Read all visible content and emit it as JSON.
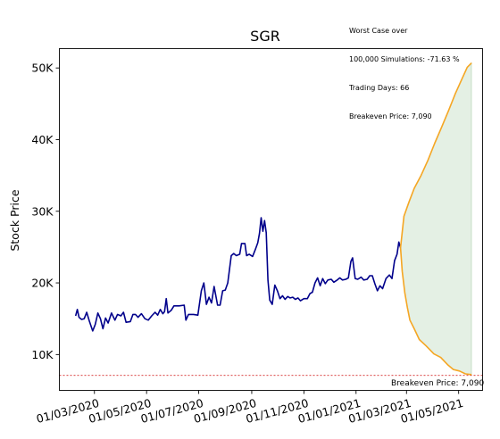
{
  "chart_data": {
    "type": "line",
    "title": "SGR",
    "xlabel": "",
    "ylabel": "Stock Price",
    "x_ticks": [
      "01/03/2020",
      "01/05/2020",
      "01/07/2020",
      "01/09/2020",
      "01/11/2020",
      "01/01/2021",
      "01/03/2021",
      "01/05/2021"
    ],
    "y_ticks": [
      {
        "value": 10000,
        "label": "10K"
      },
      {
        "value": 20000,
        "label": "20K"
      },
      {
        "value": 30000,
        "label": "30K"
      },
      {
        "value": 40000,
        "label": "40K"
      },
      {
        "value": 50000,
        "label": "50K"
      }
    ],
    "ylim": [
      5000,
      52700
    ],
    "xlim": [
      "2020-01-20",
      "2021-05-29"
    ],
    "grid": false,
    "series": [
      {
        "role": "historical",
        "color": "#00008b",
        "points": [
          [
            "2020-02-08",
            15400
          ],
          [
            "2020-02-10",
            16300
          ],
          [
            "2020-02-12",
            15200
          ],
          [
            "2020-02-15",
            14900
          ],
          [
            "2020-02-18",
            15000
          ],
          [
            "2020-02-21",
            15900
          ],
          [
            "2020-02-24",
            14700
          ],
          [
            "2020-02-28",
            13300
          ],
          [
            "2020-03-02",
            14200
          ],
          [
            "2020-03-05",
            15800
          ],
          [
            "2020-03-08",
            15000
          ],
          [
            "2020-03-11",
            13600
          ],
          [
            "2020-03-14",
            15100
          ],
          [
            "2020-03-17",
            14400
          ],
          [
            "2020-03-21",
            15800
          ],
          [
            "2020-03-25",
            14800
          ],
          [
            "2020-03-28",
            15600
          ],
          [
            "2020-04-01",
            15400
          ],
          [
            "2020-04-04",
            15900
          ],
          [
            "2020-04-07",
            14500
          ],
          [
            "2020-04-12",
            14600
          ],
          [
            "2020-04-15",
            15600
          ],
          [
            "2020-04-18",
            15600
          ],
          [
            "2020-04-21",
            15200
          ],
          [
            "2020-04-25",
            15700
          ],
          [
            "2020-04-29",
            15000
          ],
          [
            "2020-05-03",
            14800
          ],
          [
            "2020-05-07",
            15400
          ],
          [
            "2020-05-11",
            15900
          ],
          [
            "2020-05-14",
            15500
          ],
          [
            "2020-05-17",
            16300
          ],
          [
            "2020-05-20",
            15700
          ],
          [
            "2020-05-22",
            16000
          ],
          [
            "2020-05-24",
            17800
          ],
          [
            "2020-05-26",
            15800
          ],
          [
            "2020-05-30",
            16200
          ],
          [
            "2020-06-02",
            16800
          ],
          [
            "2020-06-08",
            16800
          ],
          [
            "2020-06-14",
            16900
          ],
          [
            "2020-06-16",
            14800
          ],
          [
            "2020-06-19",
            15600
          ],
          [
            "2020-06-25",
            15600
          ],
          [
            "2020-06-30",
            15500
          ],
          [
            "2020-07-04",
            18900
          ],
          [
            "2020-07-07",
            20000
          ],
          [
            "2020-07-10",
            17000
          ],
          [
            "2020-07-13",
            18000
          ],
          [
            "2020-07-16",
            17200
          ],
          [
            "2020-07-19",
            19500
          ],
          [
            "2020-07-23",
            16900
          ],
          [
            "2020-07-26",
            16900
          ],
          [
            "2020-07-29",
            18900
          ],
          [
            "2020-08-01",
            19000
          ],
          [
            "2020-08-04",
            20000
          ],
          [
            "2020-08-08",
            23800
          ],
          [
            "2020-08-11",
            24100
          ],
          [
            "2020-08-14",
            23800
          ],
          [
            "2020-08-18",
            24000
          ],
          [
            "2020-08-20",
            25500
          ],
          [
            "2020-08-24",
            25500
          ],
          [
            "2020-08-26",
            23800
          ],
          [
            "2020-08-29",
            24000
          ],
          [
            "2020-09-02",
            23700
          ],
          [
            "2020-09-05",
            24600
          ],
          [
            "2020-09-08",
            25600
          ],
          [
            "2020-09-10",
            26900
          ],
          [
            "2020-09-12",
            29100
          ],
          [
            "2020-09-14",
            27200
          ],
          [
            "2020-09-16",
            28700
          ],
          [
            "2020-09-18",
            27000
          ],
          [
            "2020-09-20",
            20400
          ],
          [
            "2020-09-22",
            17600
          ],
          [
            "2020-09-25",
            17000
          ],
          [
            "2020-09-28",
            19700
          ],
          [
            "2020-10-01",
            18900
          ],
          [
            "2020-10-04",
            17800
          ],
          [
            "2020-10-07",
            18200
          ],
          [
            "2020-10-10",
            17700
          ],
          [
            "2020-10-13",
            18100
          ],
          [
            "2020-10-16",
            17900
          ],
          [
            "2020-10-19",
            18000
          ],
          [
            "2020-10-22",
            17700
          ],
          [
            "2020-10-25",
            17900
          ],
          [
            "2020-10-28",
            17500
          ],
          [
            "2020-11-01",
            17800
          ],
          [
            "2020-11-05",
            17800
          ],
          [
            "2020-11-08",
            18500
          ],
          [
            "2020-11-11",
            18700
          ],
          [
            "2020-11-14",
            20000
          ],
          [
            "2020-11-17",
            20700
          ],
          [
            "2020-11-20",
            19600
          ],
          [
            "2020-11-23",
            20600
          ],
          [
            "2020-11-26",
            19900
          ],
          [
            "2020-11-29",
            20400
          ],
          [
            "2020-12-03",
            20500
          ],
          [
            "2020-12-06",
            20100
          ],
          [
            "2020-12-10",
            20400
          ],
          [
            "2020-12-13",
            20700
          ],
          [
            "2020-12-16",
            20400
          ],
          [
            "2020-12-20",
            20500
          ],
          [
            "2020-12-23",
            20700
          ],
          [
            "2020-12-26",
            23000
          ],
          [
            "2020-12-28",
            23500
          ],
          [
            "2020-12-31",
            20600
          ],
          [
            "2021-01-03",
            20500
          ],
          [
            "2021-01-07",
            20800
          ],
          [
            "2021-01-10",
            20400
          ],
          [
            "2021-01-14",
            20500
          ],
          [
            "2021-01-17",
            21000
          ],
          [
            "2021-01-20",
            21000
          ],
          [
            "2021-01-23",
            19900
          ],
          [
            "2021-01-26",
            18900
          ],
          [
            "2021-01-29",
            19600
          ],
          [
            "2021-02-01",
            19200
          ],
          [
            "2021-02-05",
            20600
          ],
          [
            "2021-02-09",
            21100
          ],
          [
            "2021-02-12",
            20600
          ],
          [
            "2021-02-15",
            23100
          ],
          [
            "2021-02-18",
            24000
          ],
          [
            "2021-02-20",
            25700
          ],
          [
            "2021-02-22",
            24900
          ]
        ]
      },
      {
        "role": "best-case simulation",
        "color": "#f5a623",
        "points": [
          [
            "2021-02-22",
            24900
          ],
          [
            "2021-02-26",
            29300
          ],
          [
            "2021-03-04",
            31300
          ],
          [
            "2021-03-10",
            33200
          ],
          [
            "2021-03-18",
            35000
          ],
          [
            "2021-03-26",
            37100
          ],
          [
            "2021-04-03",
            39500
          ],
          [
            "2021-04-11",
            41700
          ],
          [
            "2021-04-19",
            44000
          ],
          [
            "2021-04-27",
            46400
          ],
          [
            "2021-05-05",
            48500
          ],
          [
            "2021-05-11",
            50100
          ],
          [
            "2021-05-16",
            50700
          ]
        ]
      },
      {
        "role": "worst-case simulation",
        "color": "#f5a623",
        "points": [
          [
            "2021-02-22",
            24900
          ],
          [
            "2021-02-24",
            21600
          ],
          [
            "2021-02-27",
            18600
          ],
          [
            "2021-03-02",
            16600
          ],
          [
            "2021-03-05",
            14800
          ],
          [
            "2021-03-10",
            13600
          ],
          [
            "2021-03-16",
            12100
          ],
          [
            "2021-03-24",
            11200
          ],
          [
            "2021-04-02",
            10100
          ],
          [
            "2021-04-10",
            9600
          ],
          [
            "2021-04-18",
            8600
          ],
          [
            "2021-04-25",
            7900
          ],
          [
            "2021-05-02",
            7700
          ],
          [
            "2021-05-09",
            7300
          ],
          [
            "2021-05-16",
            7200
          ]
        ]
      }
    ],
    "shaded_band": {
      "between": [
        "best-case simulation",
        "worst-case simulation"
      ],
      "color": "#2e8b2e"
    },
    "reference_line": {
      "value": 7090,
      "color": "#cc0000",
      "label": "Breakeven Price: 7,090"
    },
    "annotation": [
      "Worst Case over",
      "100,000 Simulations: -71.63 %",
      "Trading Days: 66",
      "Breakeven Price: 7,090"
    ]
  }
}
